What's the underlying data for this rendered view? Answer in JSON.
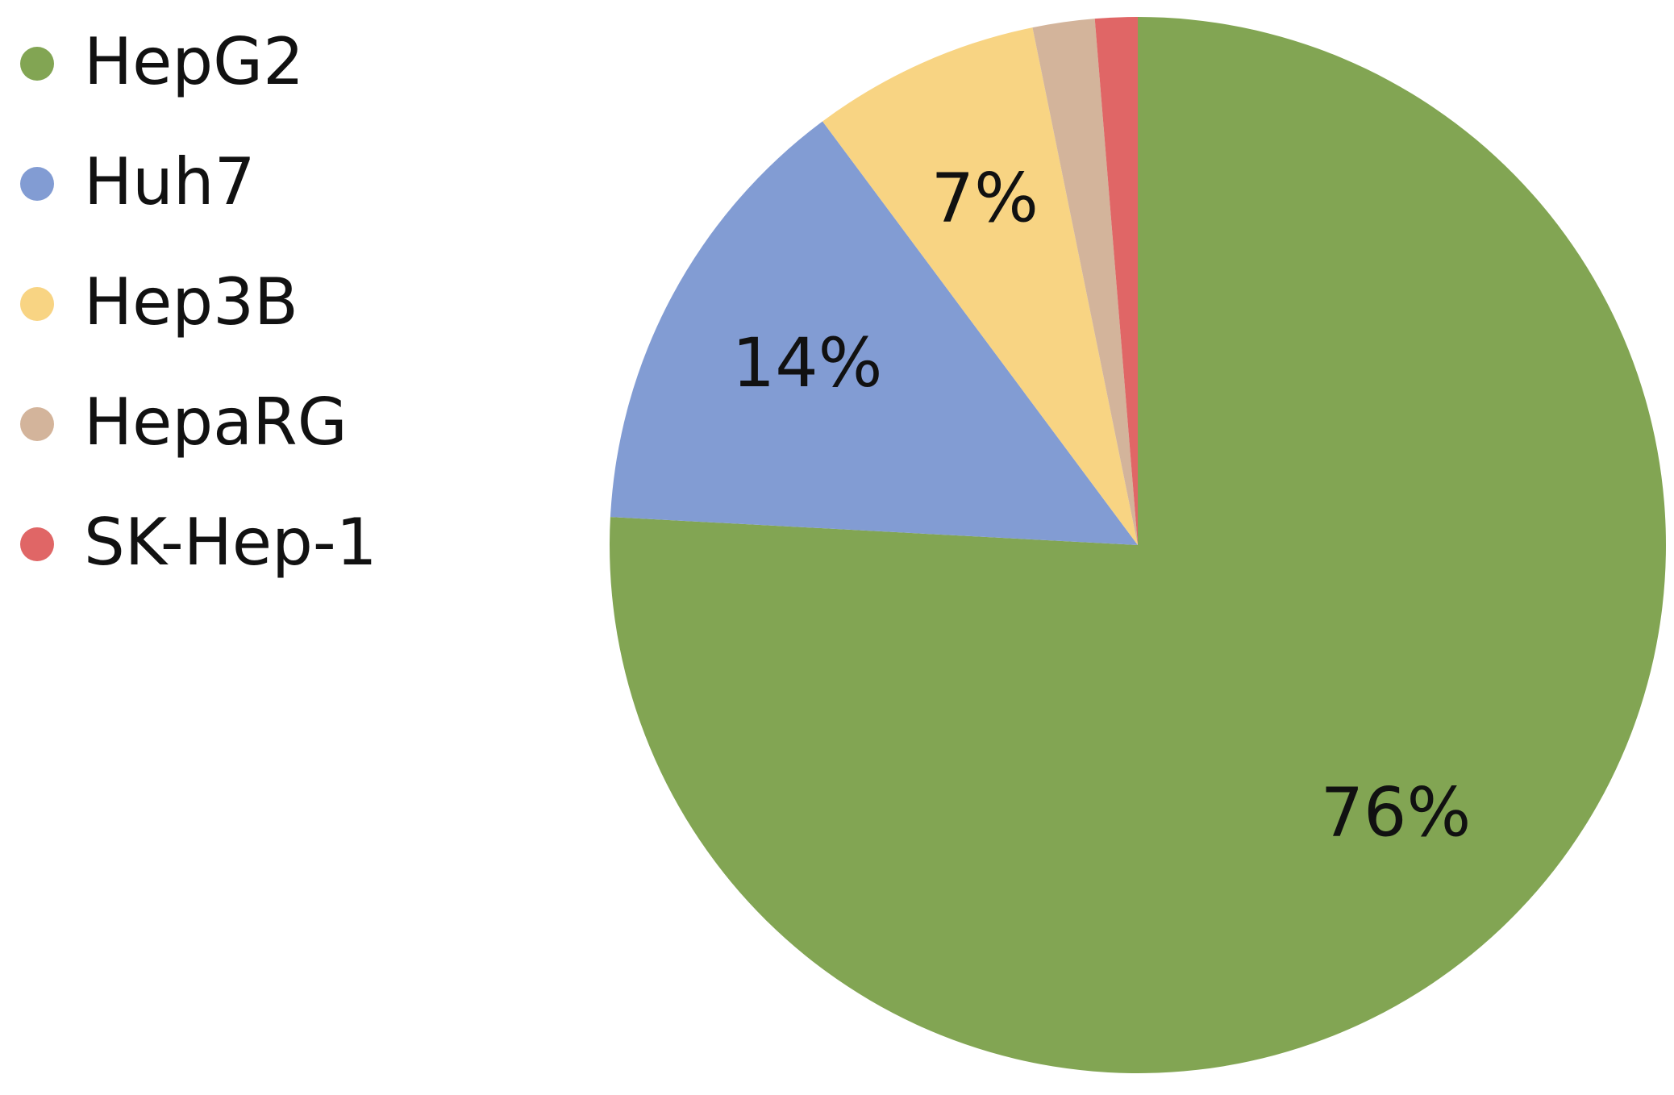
{
  "chart_data": {
    "type": "pie",
    "categories": [
      "HepG2",
      "Huh7",
      "Hep3B",
      "HepaRG",
      "SK-Hep-1"
    ],
    "values": [
      76,
      14,
      7,
      1.9,
      1.3
    ],
    "value_labels": [
      "76%",
      "14%",
      "7%",
      null,
      null
    ],
    "colors": [
      "#82a553",
      "#829cd3",
      "#f8d483",
      "#d3b49b",
      "#e06666"
    ],
    "legend": "left"
  }
}
